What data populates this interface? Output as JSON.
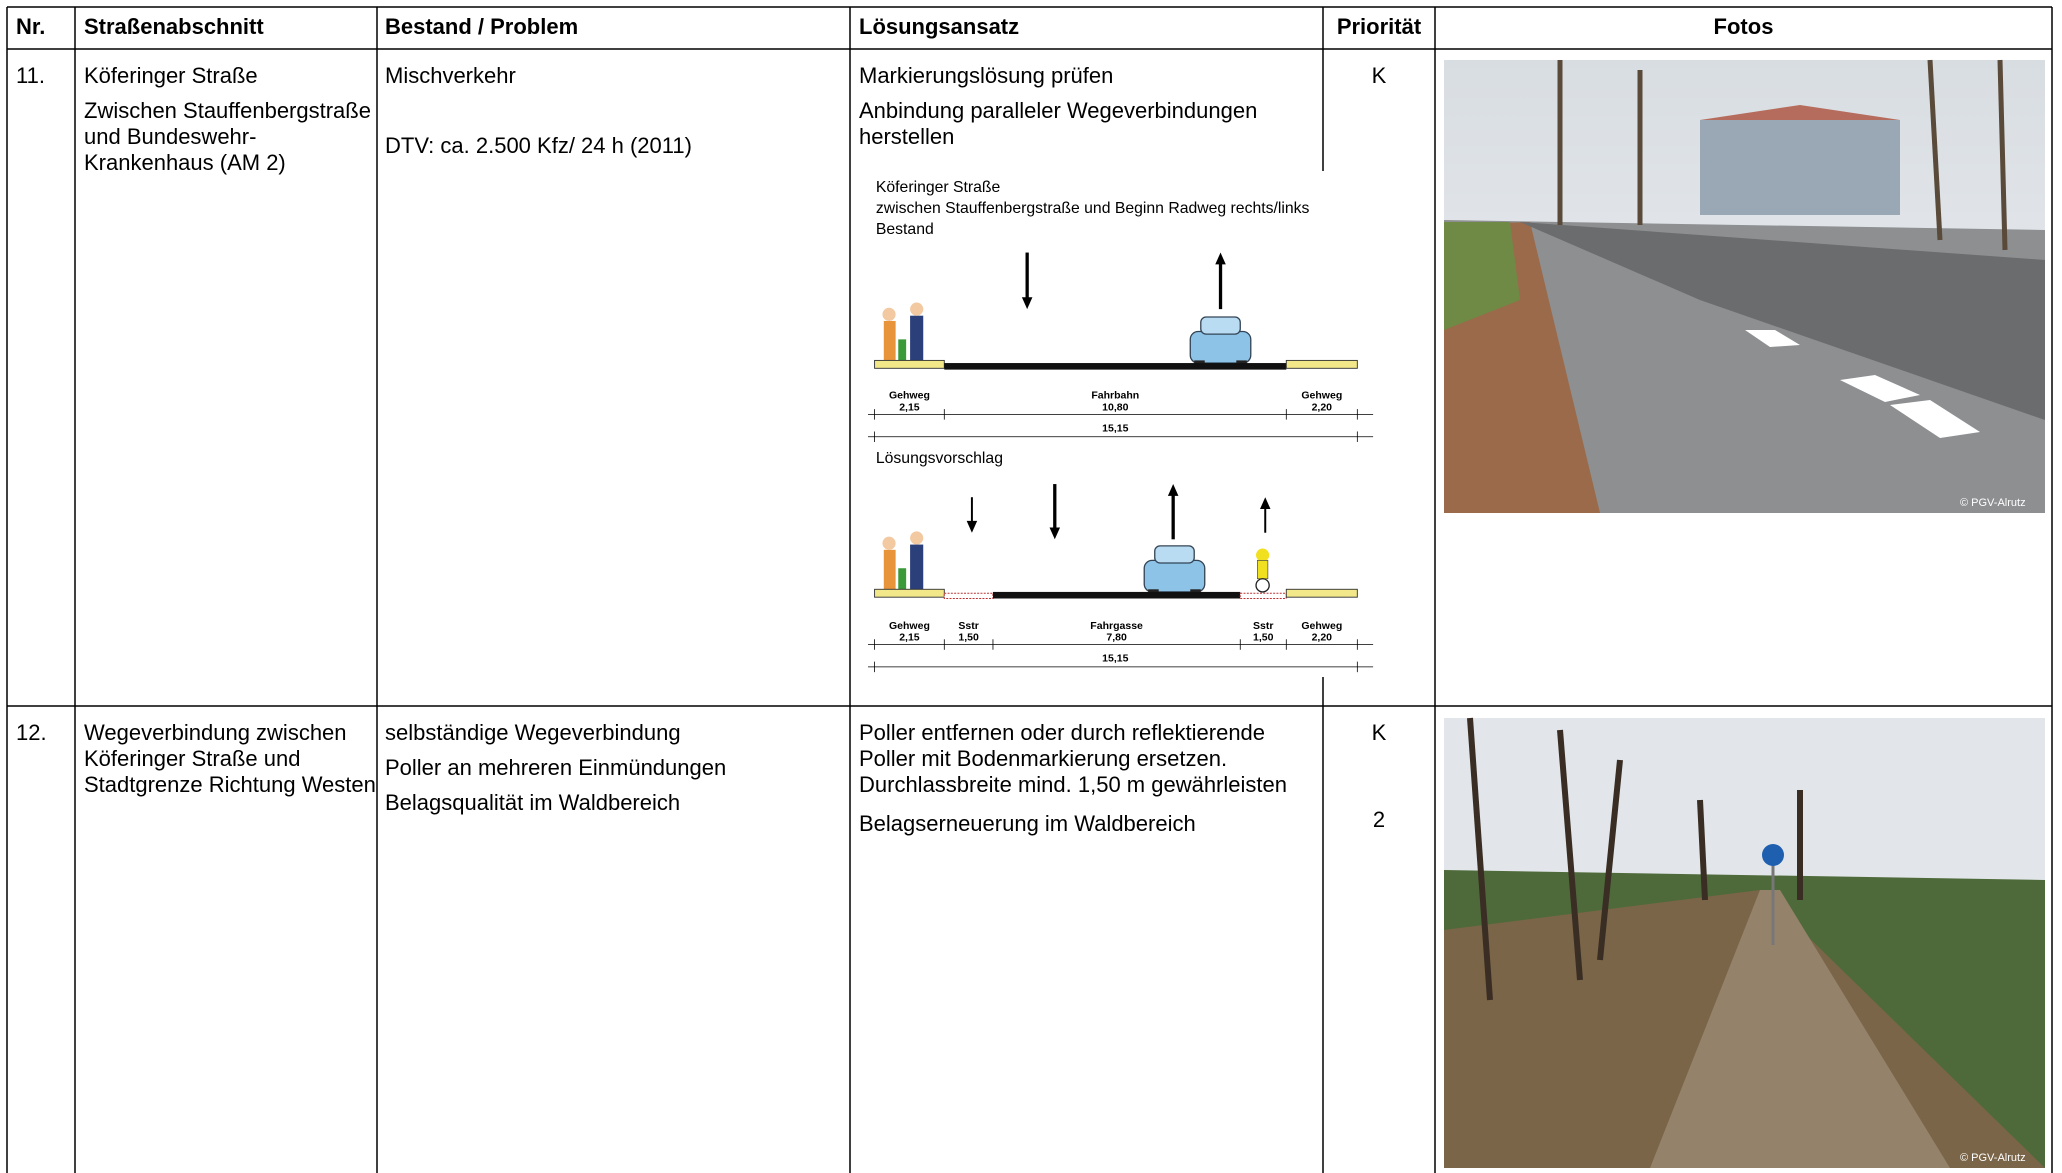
{
  "table": {
    "headers": [
      "Nr.",
      "Straßenabschnitt",
      "Bestand / Problem",
      "Lösungsansatz",
      "Priorität",
      "Fotos"
    ],
    "rows": [
      {
        "nr": "11.",
        "section": [
          "Köferinger Straße",
          "Zwischen Stauffenbergstraße und Bundeswehr-Krankenhaus (AM 2)"
        ],
        "problem": [
          "Mischverkehr",
          "DTV: ca. 2.500 Kfz/ 24 h (2011)"
        ],
        "solution": [
          "Markierungslösung prüfen",
          "Anbindung paralleler Wegeverbindungen herstellen"
        ],
        "priority": [
          "K"
        ],
        "photo_credit": "© PGV-Alrutz",
        "diagram": {
          "title": "Köferinger Straße",
          "subtitle": "zwischen Stauffenbergstraße und Beginn Radweg rechts/links",
          "existing": {
            "label": "Bestand",
            "segments": [
              {
                "name": "Gehweg",
                "width": "2,15"
              },
              {
                "name": "Fahrbahn",
                "width": "10,80"
              },
              {
                "name": "Gehweg",
                "width": "2,20"
              }
            ],
            "total": "15,15"
          },
          "proposal": {
            "label": "Lösungsvorschlag",
            "segments": [
              {
                "name": "Gehweg",
                "width": "2,15"
              },
              {
                "name": "Sstr",
                "width": "1,50"
              },
              {
                "name": "Fahrgasse",
                "width": "7,80"
              },
              {
                "name": "Sstr",
                "width": "1,50"
              },
              {
                "name": "Gehweg",
                "width": "2,20"
              }
            ],
            "total": "15,15"
          }
        }
      },
      {
        "nr": "12.",
        "section": [
          "Wegeverbindung zwischen Köferinger Straße und Stadtgrenze Richtung Westen"
        ],
        "problem": [
          "selbständige Wegeverbindung",
          "Poller an mehreren Einmündungen",
          "Belagsqualität im Waldbereich"
        ],
        "solution": [
          "Poller entfernen oder durch reflektierende Poller mit Bodenmarkierung ersetzen. Durchlassbreite mind. 1,50 m gewährleisten",
          "Belagserneuerung im Waldbereich"
        ],
        "priority": [
          "K",
          "2"
        ],
        "photo_credit": "© PGV-Alrutz"
      }
    ]
  }
}
